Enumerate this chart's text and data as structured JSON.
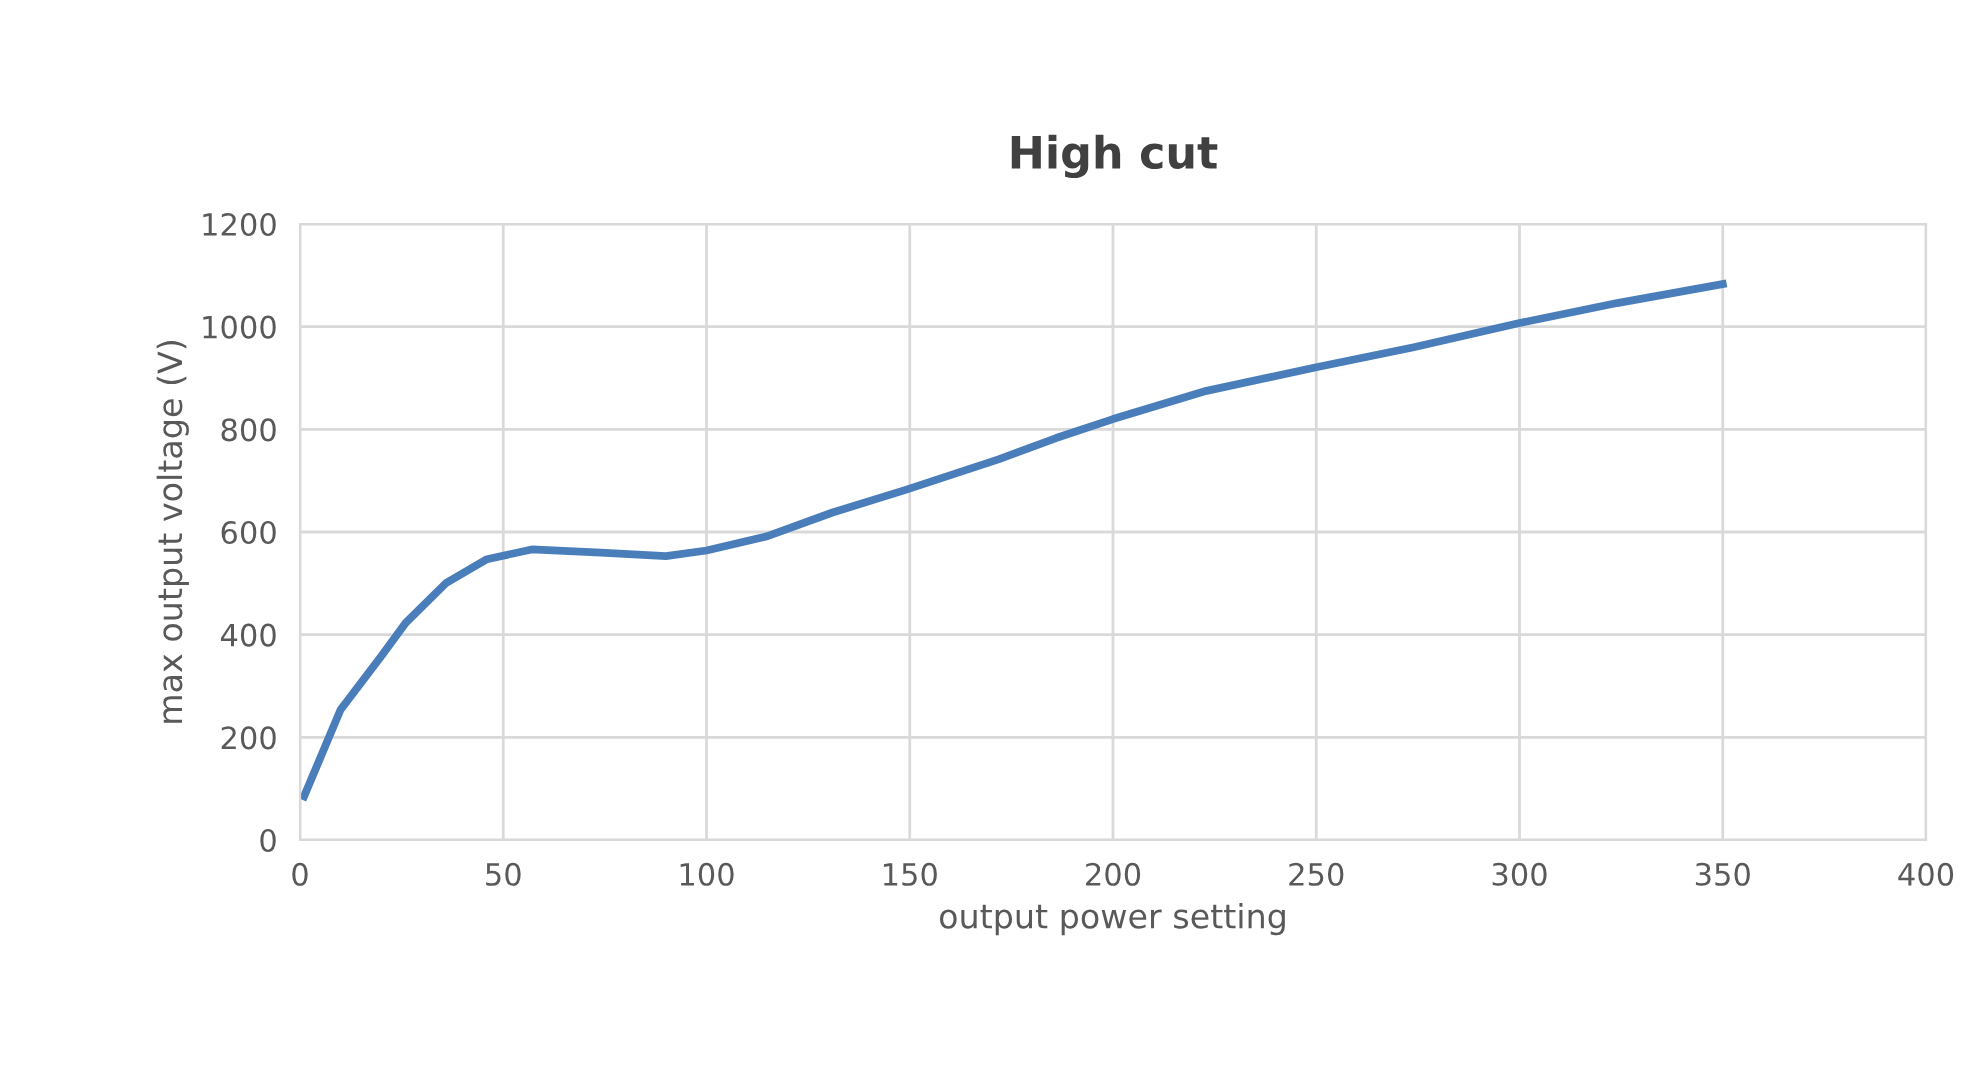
{
  "chart_data": {
    "type": "line",
    "title": "High cut",
    "xlabel": "output power setting",
    "ylabel": "max output voltage (V)",
    "x": [
      1,
      10,
      20,
      26,
      36,
      46,
      57,
      74,
      90,
      100,
      115,
      131,
      149,
      172,
      186,
      200,
      223,
      250,
      274,
      300,
      324,
      350
    ],
    "series": [
      {
        "color": "#4a7ebb",
        "values": [
          85,
          254,
          358,
          423,
          501,
          547,
          566,
          560,
          553,
          564,
          592,
          638,
          682,
          742,
          783,
          820,
          875,
          921,
          960,
          1007,
          1046,
          1083
        ]
      }
    ],
    "xlim": [
      0,
      400
    ],
    "xticks": [
      0,
      50,
      100,
      150,
      200,
      250,
      300,
      350,
      400
    ],
    "ylim": [
      0,
      1200
    ],
    "yticks": [
      0,
      200,
      400,
      600,
      800,
      1000,
      1200
    ],
    "grid": true,
    "legend": false,
    "marker": "none",
    "line_style": "solid"
  }
}
